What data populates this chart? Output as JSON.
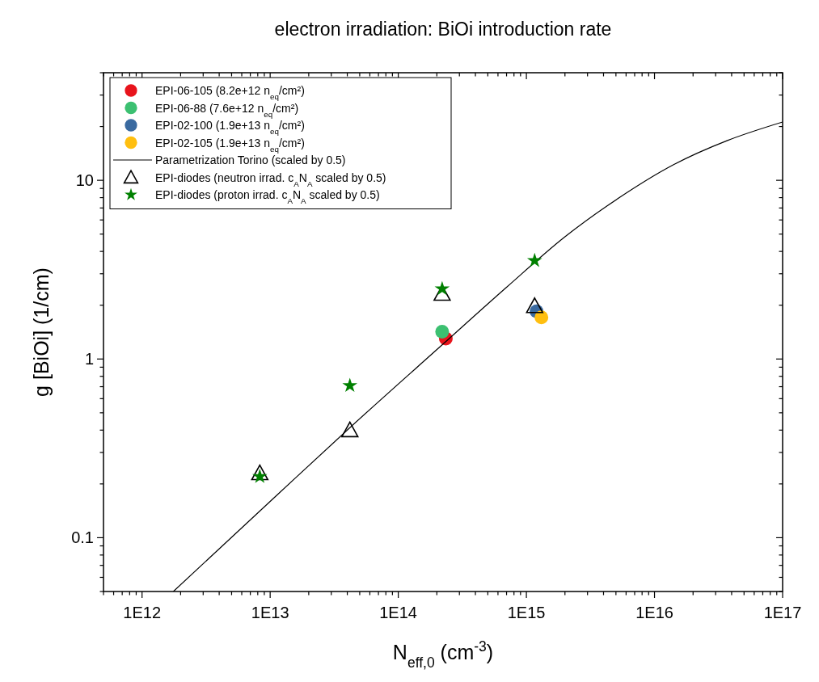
{
  "chart_data": {
    "type": "scatter",
    "title": "electron irradiation: BiOi introduction rate",
    "xlabel": "N$_{eff,0}$ (cm$^{-3}$)",
    "ylabel": "g [BiOi] (1/cm)",
    "log": "xy",
    "grid": false,
    "legend": "top left",
    "xlim": [
      500000000000.0,
      1e+17
    ],
    "ylim": [
      0.05,
      40
    ],
    "xticks": [
      {
        "value": 500000000000.0,
        "label": null
      },
      {
        "value": 600000000000.0,
        "label": null
      },
      {
        "value": 700000000000.0,
        "label": null
      },
      {
        "value": 800000000000.0,
        "label": null
      },
      {
        "value": 900000000000.0,
        "label": null
      },
      {
        "value": 1000000000000.0,
        "label": "1E12"
      },
      {
        "value": 2000000000000.0,
        "label": null
      },
      {
        "value": 3000000000000.0,
        "label": null
      },
      {
        "value": 4000000000000.0,
        "label": null
      },
      {
        "value": 5000000000000.0,
        "label": null
      },
      {
        "value": 6000000000000.0,
        "label": null
      },
      {
        "value": 7000000000000.0,
        "label": null
      },
      {
        "value": 8000000000000.0,
        "label": null
      },
      {
        "value": 9000000000000.0,
        "label": null
      },
      {
        "value": 10000000000000.0,
        "label": "1E13"
      },
      {
        "value": 20000000000000.0,
        "label": null
      },
      {
        "value": 30000000000000.0,
        "label": null
      },
      {
        "value": 40000000000000.0,
        "label": null
      },
      {
        "value": 50000000000000.0,
        "label": null
      },
      {
        "value": 60000000000000.0,
        "label": null
      },
      {
        "value": 70000000000000.0,
        "label": null
      },
      {
        "value": 80000000000000.0,
        "label": null
      },
      {
        "value": 90000000000000.0,
        "label": null
      },
      {
        "value": 100000000000000.0,
        "label": "1E14"
      },
      {
        "value": 200000000000000.0,
        "label": null
      },
      {
        "value": 300000000000000.0,
        "label": null
      },
      {
        "value": 400000000000000.0,
        "label": null
      },
      {
        "value": 500000000000000.0,
        "label": null
      },
      {
        "value": 600000000000000.0,
        "label": null
      },
      {
        "value": 700000000000000.0,
        "label": null
      },
      {
        "value": 800000000000000.0,
        "label": null
      },
      {
        "value": 900000000000000.0,
        "label": null
      },
      {
        "value": 1000000000000000.0,
        "label": "1E15"
      },
      {
        "value": 2000000000000000.0,
        "label": null
      },
      {
        "value": 3000000000000000.0,
        "label": null
      },
      {
        "value": 4000000000000000.0,
        "label": null
      },
      {
        "value": 5000000000000000.0,
        "label": null
      },
      {
        "value": 6000000000000000.0,
        "label": null
      },
      {
        "value": 7000000000000000.0,
        "label": null
      },
      {
        "value": 8000000000000000.0,
        "label": null
      },
      {
        "value": 9000000000000000.0,
        "label": null
      },
      {
        "value": 1e+16,
        "label": "1E16"
      },
      {
        "value": 2e+16,
        "label": null
      },
      {
        "value": 3e+16,
        "label": null
      },
      {
        "value": 4e+16,
        "label": null
      },
      {
        "value": 5e+16,
        "label": null
      },
      {
        "value": 6e+16,
        "label": null
      },
      {
        "value": 7e+16,
        "label": null
      },
      {
        "value": 8e+16,
        "label": null
      },
      {
        "value": 9e+16,
        "label": null
      },
      {
        "value": 1e+17,
        "label": "1E17"
      }
    ],
    "yticks": [
      {
        "value": 0.05,
        "label": null
      },
      {
        "value": 0.06,
        "label": null
      },
      {
        "value": 0.07,
        "label": null
      },
      {
        "value": 0.08,
        "label": null
      },
      {
        "value": 0.09,
        "label": null
      },
      0.1,
      {
        "value": 0.2,
        "label": null
      },
      {
        "value": 0.3,
        "label": null
      },
      {
        "value": 0.4,
        "label": null
      },
      {
        "value": 0.5,
        "label": null
      },
      {
        "value": 0.6,
        "label": null
      },
      {
        "value": 0.7,
        "label": null
      },
      {
        "value": 0.8,
        "label": null
      },
      {
        "value": 0.9,
        "label": null
      },
      1,
      {
        "value": 2,
        "label": null
      },
      {
        "value": 3,
        "label": null
      },
      {
        "value": 4,
        "label": null
      },
      {
        "value": 5,
        "label": null
      },
      {
        "value": 6,
        "label": null
      },
      {
        "value": 7,
        "label": null
      },
      {
        "value": 8,
        "label": null
      },
      {
        "value": 9,
        "label": null
      },
      10,
      {
        "value": 20,
        "label": null
      },
      {
        "value": 30,
        "label": null
      },
      {
        "value": 40,
        "label": null
      }
    ],
    "series": [
      {
        "name": "EPI-06-105 (8.2e+12 n$_{eq}$/cm²)",
        "marker": "circle",
        "color": "#e8141c",
        "x": [
          235000000000000.0
        ],
        "values": [
          1.3
        ]
      },
      {
        "name": "EPI-06-88 (7.6e+12 n$_{eq}$/cm²)",
        "marker": "circle",
        "color": "#3cc071",
        "x": [
          220000000000000.0
        ],
        "values": [
          1.42
        ]
      },
      {
        "name": "EPI-02-100 (1.9e+13 n$_{eq}$/cm²)",
        "marker": "circle",
        "color": "#3a6aa0",
        "x": [
          1200000000000000.0
        ],
        "values": [
          1.85
        ]
      },
      {
        "name": "EPI-02-105 (1.9e+13 n$_{eq}$/cm²)",
        "marker": "circle",
        "color": "#ffbf10",
        "x": [
          1310000000000000.0
        ],
        "values": [
          1.71
        ]
      },
      {
        "name": "Parametrization Torino (scaled by 0.5)",
        "type": "line",
        "marker": "none",
        "line_style": "solid",
        "color": "#000000",
        "x": [
          1755000000000.0,
          10900000000000.0,
          41900000000000.0,
          220000000000000.0,
          700000000000000.0,
          2000000000000000.0,
          5260000000000000.0,
          1.4e+16,
          3.71e+16,
          1e+17
        ],
        "values": [
          0.05,
          0.169,
          0.413,
          1.2,
          2.52,
          4.83,
          7.96,
          12.2,
          16.7,
          21.2
        ]
      },
      {
        "name": "EPI-diodes (neutron irrad. c$_{A}$N$_{A}$ scaled by 0.5)",
        "marker": "triangle",
        "color": "#000000",
        "x": [
          8300000000000.0,
          41900000000000.0,
          220000000000000.0,
          1160000000000000.0
        ],
        "values": [
          0.23,
          0.4,
          2.32,
          1.98
        ]
      },
      {
        "name": "EPI-diodes (proton irrad. c$_{A}$N$_{A}$ scaled by 0.5)",
        "marker": "star",
        "color": "#008000",
        "x": [
          8300000000000.0,
          41900000000000.0,
          220000000000000.0,
          1160000000000000.0
        ],
        "values": [
          0.22,
          0.71,
          2.47,
          3.55
        ]
      }
    ]
  }
}
